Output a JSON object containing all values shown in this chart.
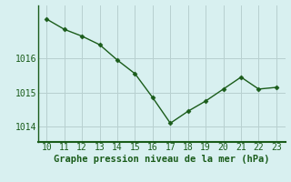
{
  "x": [
    10,
    11,
    12,
    13,
    14,
    15,
    16,
    17,
    18,
    19,
    20,
    21,
    22,
    23
  ],
  "y": [
    1017.15,
    1016.85,
    1016.65,
    1016.4,
    1015.95,
    1015.55,
    1014.85,
    1014.1,
    1014.45,
    1014.75,
    1015.1,
    1015.45,
    1015.1,
    1015.15
  ],
  "line_color": "#1a5c1a",
  "marker": "D",
  "marker_size": 2.5,
  "bg_color": "#d8f0f0",
  "grid_color": "#b8d0d0",
  "xlabel": "Graphe pression niveau de la mer (hPa)",
  "xlabel_color": "#1a5c1a",
  "xlabel_fontsize": 7.5,
  "tick_color": "#1a5c1a",
  "tick_fontsize": 7,
  "ytick_labels": [
    "1014",
    "1015",
    "1016"
  ],
  "yticks": [
    1014,
    1015,
    1016
  ],
  "ylim": [
    1013.55,
    1017.55
  ],
  "xlim": [
    9.5,
    23.5
  ]
}
